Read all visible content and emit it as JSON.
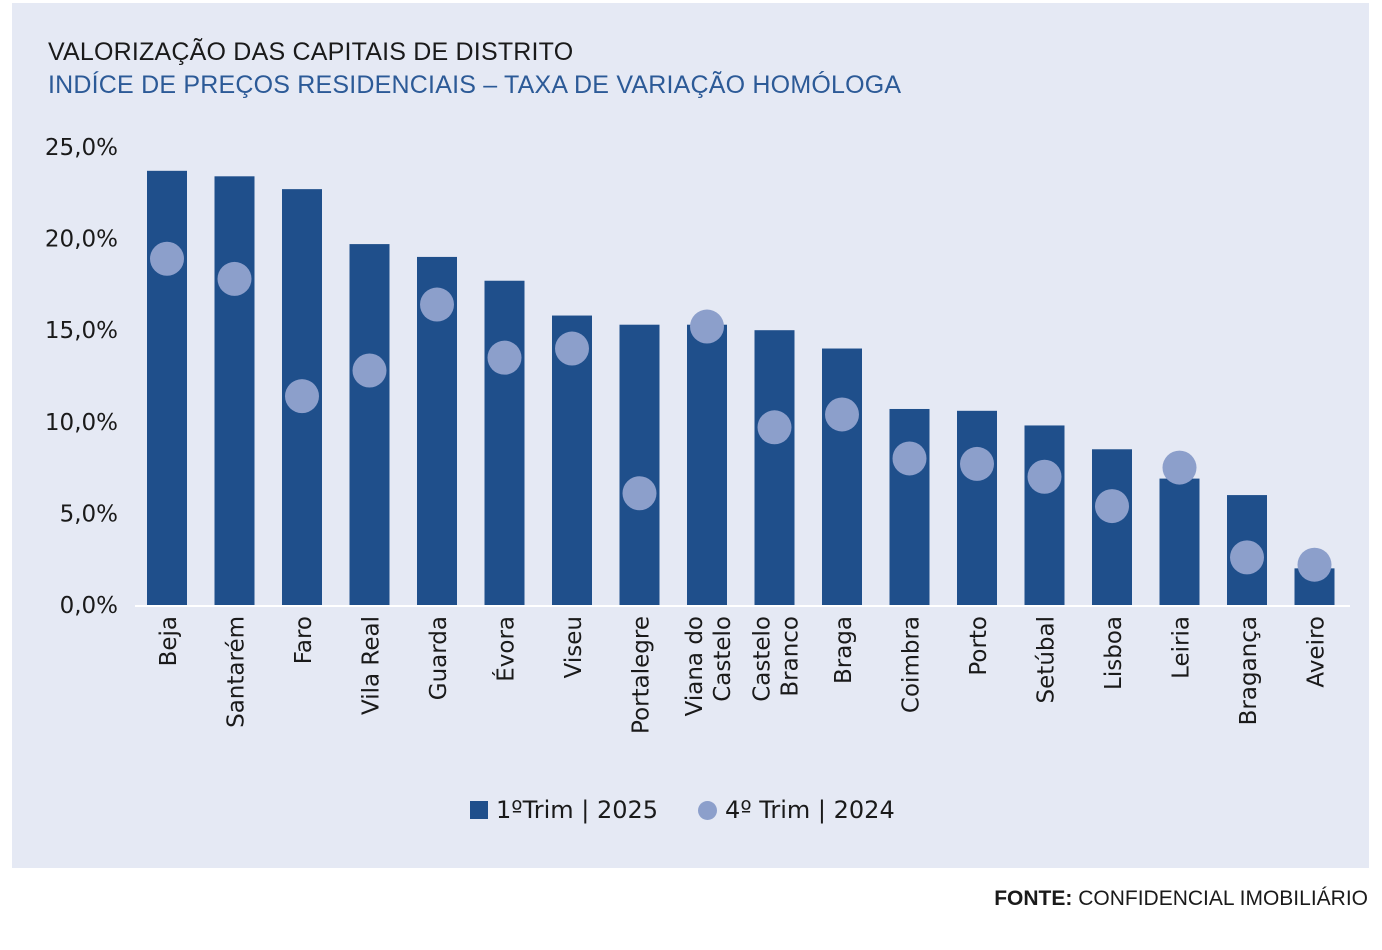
{
  "title": "VALORIZAÇÃO DAS CAPITAIS DE DISTRITO",
  "subtitle": "INDÍCE DE PREÇOS RESIDENCIAIS – TAXA DE VARIAÇÃO HOMÓLOGA",
  "source": {
    "label": "FONTE:",
    "text": " CONFIDENCIAL IMOBILIÁRIO"
  },
  "colors": {
    "bar": "#1f4f8b",
    "dot": "#8c9fcb",
    "background": "#e5e9f4",
    "axis": "#ffffff"
  },
  "chart_data": {
    "type": "bar",
    "title": "",
    "xlabel": "",
    "ylabel": "",
    "ylim": [
      0,
      25
    ],
    "yticks": [
      0,
      5,
      10,
      15,
      20,
      25
    ],
    "ytick_labels": [
      "0,0%",
      "5,0%",
      "10,0%",
      "15,0%",
      "20,0%",
      "25,0%"
    ],
    "grid": false,
    "legend_position": "bottom",
    "categories": [
      "Beja",
      "Santarém",
      "Faro",
      "Vila Real",
      "Guarda",
      "Évora",
      "Viseu",
      "Portalegre",
      "Viana do Castelo",
      "Castelo Branco",
      "Braga",
      "Coimbra",
      "Porto",
      "Setúbal",
      "Lisboa",
      "Leiria",
      "Bragança",
      "Aveiro"
    ],
    "category_lines": [
      [
        "Beja"
      ],
      [
        "Santarém"
      ],
      [
        "Faro"
      ],
      [
        "Vila Real"
      ],
      [
        "Guarda"
      ],
      [
        "Évora"
      ],
      [
        "Viseu"
      ],
      [
        "Portalegre"
      ],
      [
        "Viana do",
        "Castelo"
      ],
      [
        "Castelo",
        "Branco"
      ],
      [
        "Braga"
      ],
      [
        "Coimbra"
      ],
      [
        "Porto"
      ],
      [
        "Setúbal"
      ],
      [
        "Lisboa"
      ],
      [
        "Leiria"
      ],
      [
        "Bragança"
      ],
      [
        "Aveiro"
      ]
    ],
    "series": [
      {
        "name": "1ºTrim | 2025",
        "type": "bar",
        "values": [
          23.7,
          23.4,
          22.7,
          19.7,
          19.0,
          17.7,
          15.8,
          15.3,
          15.3,
          15.0,
          14.0,
          10.7,
          10.6,
          9.8,
          8.5,
          6.9,
          6.0,
          2.0
        ]
      },
      {
        "name": "4º Trim | 2024",
        "type": "scatter",
        "values": [
          18.9,
          17.8,
          11.4,
          12.8,
          16.4,
          13.5,
          14.0,
          6.1,
          15.2,
          9.7,
          10.4,
          8.0,
          7.7,
          7.0,
          5.4,
          7.5,
          2.6,
          2.2
        ]
      }
    ]
  }
}
